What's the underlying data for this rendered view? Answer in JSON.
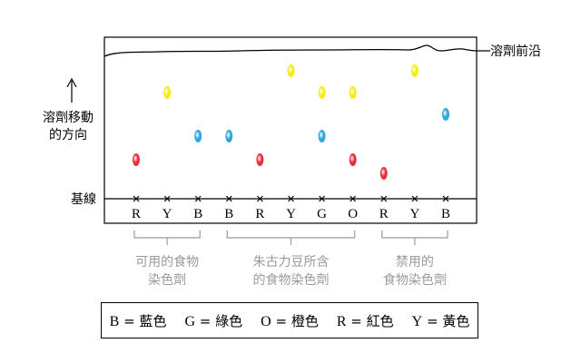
{
  "labels": {
    "solvent_front": "溶劑前沿",
    "direction_line1": "溶劑移動",
    "direction_line2": "的方向",
    "baseline": "基線"
  },
  "lanes": [
    "R",
    "Y",
    "B",
    "B",
    "R",
    "Y",
    "G",
    "O",
    "R",
    "Y",
    "B"
  ],
  "groups": [
    {
      "line1": "可用的食物",
      "line2": "染色劑"
    },
    {
      "line1": "朱古力豆所含",
      "line2": "的食物染色劑"
    },
    {
      "line1": "禁用的",
      "line2": "食物染色劑"
    }
  ],
  "colors": {
    "red": "#e8303a",
    "yellow": "#f5ec1a",
    "blue": "#2fa8e0",
    "bracket_gray": "#9a9a9a"
  },
  "spots": [
    {
      "lane": 0,
      "color": "red"
    },
    {
      "lane": 1,
      "color": "yellow"
    },
    {
      "lane": 2,
      "color": "blue"
    },
    {
      "lane": 3,
      "color": "blue"
    },
    {
      "lane": 4,
      "color": "red"
    },
    {
      "lane": 5,
      "color": "yellow"
    },
    {
      "lane": 6,
      "color": "yellow"
    },
    {
      "lane": 6,
      "color": "blue"
    },
    {
      "lane": 7,
      "color": "yellow"
    },
    {
      "lane": 7,
      "color": "red"
    },
    {
      "lane": 8,
      "color": "red"
    },
    {
      "lane": 9,
      "color": "yellow"
    },
    {
      "lane": 10,
      "color": "blue"
    }
  ],
  "key": [
    {
      "letter": "B",
      "eq": "=",
      "name": "藍色"
    },
    {
      "letter": "G",
      "eq": "=",
      "name": "綠色"
    },
    {
      "letter": "O",
      "eq": "=",
      "name": "橙色"
    },
    {
      "letter": "R",
      "eq": "=",
      "name": "紅色"
    },
    {
      "letter": "Y",
      "eq": "=",
      "name": "黃色"
    }
  ]
}
